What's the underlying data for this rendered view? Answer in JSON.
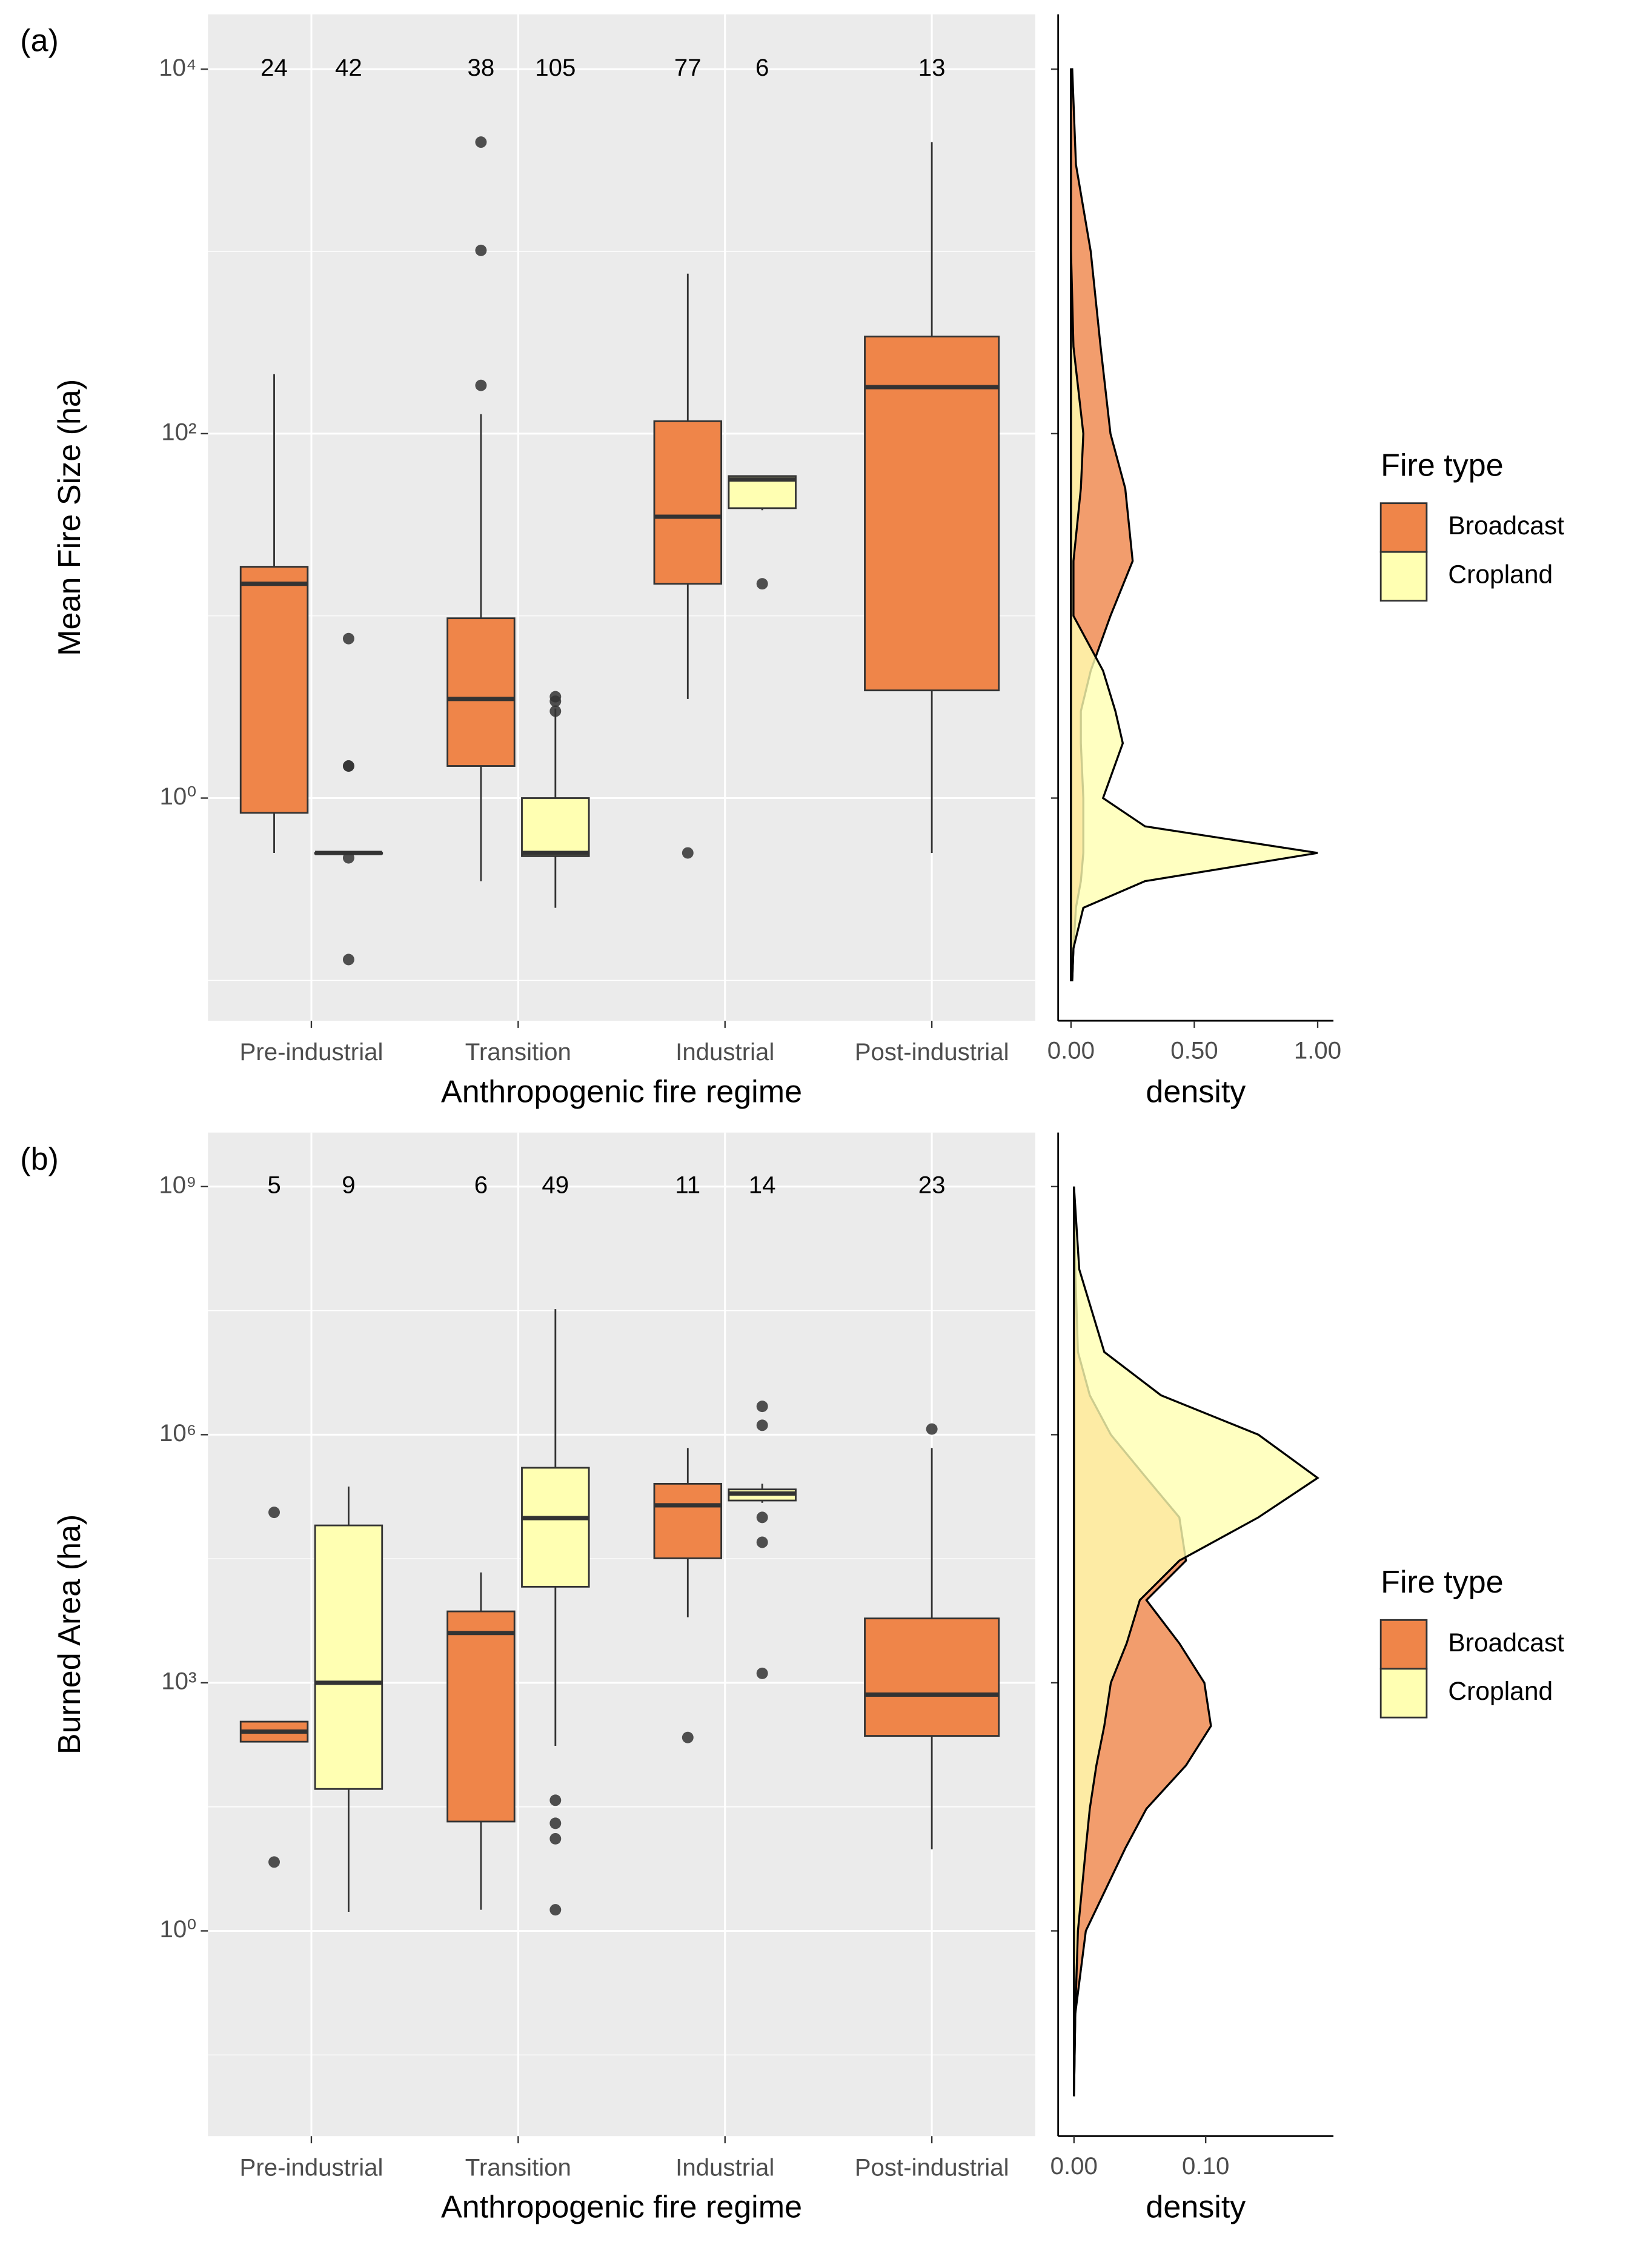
{
  "chart_data": [
    {
      "type": "box",
      "label": "(a)",
      "ylabel": "Mean Fire Size (ha)",
      "xlabel": "Anthropogenic fire regime",
      "categories": [
        "Pre-industrial",
        "Transition",
        "Industrial",
        "Post-industrial"
      ],
      "log_y": true,
      "ylim": [
        0.06,
        20000
      ],
      "yticks": [
        {
          "value": 1,
          "label": "10⁰"
        },
        {
          "value": 100,
          "label": "10²"
        },
        {
          "value": 10000,
          "label": "10⁴"
        }
      ],
      "minor_yticks": [
        0.1,
        10,
        1000
      ],
      "grid": true,
      "legend": "right",
      "legend_title": "Fire type",
      "series": [
        {
          "name": "Broadcast",
          "color": "#ef8549",
          "boxes": [
            {
              "low": 0.5,
              "q1": 0.83,
              "median": 15,
              "q3": 18.6,
              "high": 212,
              "outliers": [],
              "n": 24
            },
            {
              "low": 0.35,
              "q1": 1.5,
              "median": 3.5,
              "q3": 9.7,
              "high": 128,
              "outliers": [
                184,
                1013,
                3980
              ],
              "n": 38
            },
            {
              "low": 3.5,
              "q1": 15,
              "median": 35,
              "q3": 117,
              "high": 755,
              "outliers": [
                0.5
              ],
              "n": 77
            },
            {
              "low": 0.5,
              "q1": 3.9,
              "median": 180,
              "q3": 341,
              "high": 3980,
              "outliers": [],
              "n": 13
            }
          ]
        },
        {
          "name": "Cropland",
          "color": "#ffffb2",
          "boxes": [
            {
              "low": 0.5,
              "q1": 0.5,
              "median": 0.5,
              "q3": 0.5,
              "high": 0.5,
              "outliers": [
                0.13,
                0.47,
                1.5,
                1.5,
                7.5
              ],
              "n": 42
            },
            {
              "low": 0.25,
              "q1": 0.48,
              "median": 0.5,
              "q3": 1,
              "high": 3.1,
              "outliers": [
                3,
                3.4,
                3.6
              ],
              "n": 105
            },
            {
              "low": 38,
              "q1": 39,
              "median": 56,
              "q3": 58.5,
              "high": 58.5,
              "outliers": [
                15
              ],
              "n": 6
            },
            null
          ]
        }
      ],
      "density_panel": {
        "type": "density",
        "xlabel": "density",
        "xlim": [
          -0.052,
          1.064
        ],
        "xticks": [
          {
            "value": 0,
            "label": "0.00"
          },
          {
            "value": 0.5,
            "label": "0.50"
          },
          {
            "value": 1,
            "label": "1.00"
          }
        ],
        "y": [
          10000,
          3000,
          1000,
          300,
          100,
          50,
          20,
          10,
          5,
          3,
          2,
          1,
          0.7,
          0.5,
          0.35,
          0.25,
          0.15,
          0.1
        ],
        "series": [
          {
            "name": "Broadcast",
            "color": "#ef8549",
            "values": [
              0.005,
              0.02,
              0.08,
              0.12,
              0.16,
              0.22,
              0.25,
              0.16,
              0.08,
              0.04,
              0.04,
              0.05,
              0.05,
              0.05,
              0.04,
              0.02,
              0.01,
              0.005
            ]
          },
          {
            "name": "Cropland",
            "color": "#ffffb2",
            "values": [
              0,
              0,
              0,
              0.01,
              0.05,
              0.04,
              0.01,
              0.01,
              0.13,
              0.18,
              0.21,
              0.13,
              0.3,
              1.0,
              0.3,
              0.05,
              0.01,
              0.005
            ]
          }
        ]
      }
    },
    {
      "type": "box",
      "label": "(b)",
      "ylabel": "Burned Area (ha)",
      "xlabel": "Anthropogenic fire regime",
      "categories": [
        "Pre-industrial",
        "Transition",
        "Industrial",
        "Post-industrial"
      ],
      "log_y": true,
      "ylim": [
        0.0033,
        4500000000
      ],
      "yticks": [
        {
          "value": 1,
          "label": "10⁰"
        },
        {
          "value": 1000,
          "label": "10³"
        },
        {
          "value": 1000000,
          "label": "10⁶"
        },
        {
          "value": 1000000000,
          "label": "10⁹"
        }
      ],
      "minor_yticks": [
        0.0316,
        31.6,
        31600,
        31600000
      ],
      "grid": true,
      "legend": "right",
      "legend_title": "Fire type",
      "series": [
        {
          "name": "Broadcast",
          "color": "#ef8549",
          "boxes": [
            {
              "low": 194,
              "q1": 194,
              "median": 257,
              "q3": 339,
              "high": 339,
              "outliers": [
                6.8,
                115000
              ],
              "n": 5
            },
            {
              "low": 1.8,
              "q1": 21,
              "median": 4000,
              "q3": 7300,
              "high": 21600,
              "outliers": [],
              "n": 6
            },
            {
              "low": 6200,
              "q1": 32000,
              "median": 140000,
              "q3": 255000,
              "high": 690000,
              "outliers": [
                218
              ],
              "n": 11
            },
            {
              "low": 9.7,
              "q1": 228,
              "median": 720,
              "q3": 6000,
              "high": 690000,
              "outliers": [
                1170000
              ],
              "n": 23
            }
          ]
        },
        {
          "name": "Cropland",
          "color": "#ffffb2",
          "boxes": [
            {
              "low": 1.7,
              "q1": 52,
              "median": 1000,
              "q3": 80000,
              "high": 236000,
              "outliers": [],
              "n": 9
            },
            {
              "low": 173,
              "q1": 14500,
              "median": 98000,
              "q3": 398000,
              "high": 33000000,
              "outliers": [
                1.8,
                13,
                20,
                38
              ],
              "n": 49
            },
            {
              "low": 150000,
              "q1": 160000,
              "median": 194000,
              "q3": 218000,
              "high": 255000,
              "outliers": [
                1300,
                50000,
                100000,
                1300000,
                2200000
              ],
              "n": 14
            },
            null
          ]
        }
      ],
      "density_panel": {
        "type": "density",
        "xlabel": "density",
        "xlim": [
          -0.012,
          0.197
        ],
        "xticks": [
          {
            "value": 0,
            "label": "0.00"
          },
          {
            "value": 0.1,
            "label": "0.10"
          }
        ],
        "y": [
          1000000000,
          100000000,
          10000000,
          3000000,
          1000000,
          300000,
          100000,
          30000,
          10000,
          3000,
          1000,
          300,
          100,
          30,
          10,
          1,
          0.1,
          0.01
        ],
        "series": [
          {
            "name": "Broadcast",
            "color": "#ef8549",
            "values": [
              0,
              0.001,
              0.003,
              0.012,
              0.028,
              0.055,
              0.08,
              0.085,
              0.055,
              0.08,
              0.099,
              0.104,
              0.085,
              0.055,
              0.039,
              0.009,
              0.001,
              0
            ]
          },
          {
            "name": "Cropland",
            "color": "#ffffb2",
            "values": [
              0,
              0.004,
              0.023,
              0.066,
              0.14,
              0.185,
              0.14,
              0.08,
              0.05,
              0.04,
              0.028,
              0.023,
              0.017,
              0.012,
              0.009,
              0.003,
              0.001,
              0
            ]
          }
        ]
      }
    }
  ]
}
